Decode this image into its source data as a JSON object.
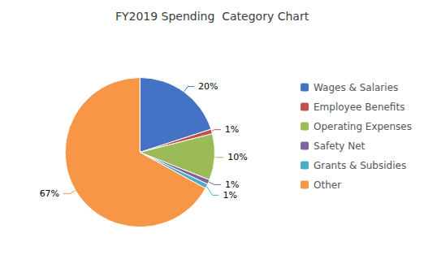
{
  "chart_data": {
    "type": "pie",
    "title": "FY2019 Spending  Category Chart",
    "categories": [
      "Wages & Salaries",
      "Employee Benefits",
      "Operating Expenses",
      "Safety Net",
      "Grants & Subsidies",
      "Other"
    ],
    "values": [
      20,
      1,
      10,
      1,
      1,
      67
    ],
    "value_labels": [
      "20%",
      "1%",
      "10%",
      "1%",
      "1%",
      "67%"
    ],
    "colors": [
      "#4472C4",
      "#C0504D",
      "#9BBB59",
      "#8064A2",
      "#4BACC6",
      "#F79646"
    ],
    "legend": "right",
    "data_labels": true
  }
}
